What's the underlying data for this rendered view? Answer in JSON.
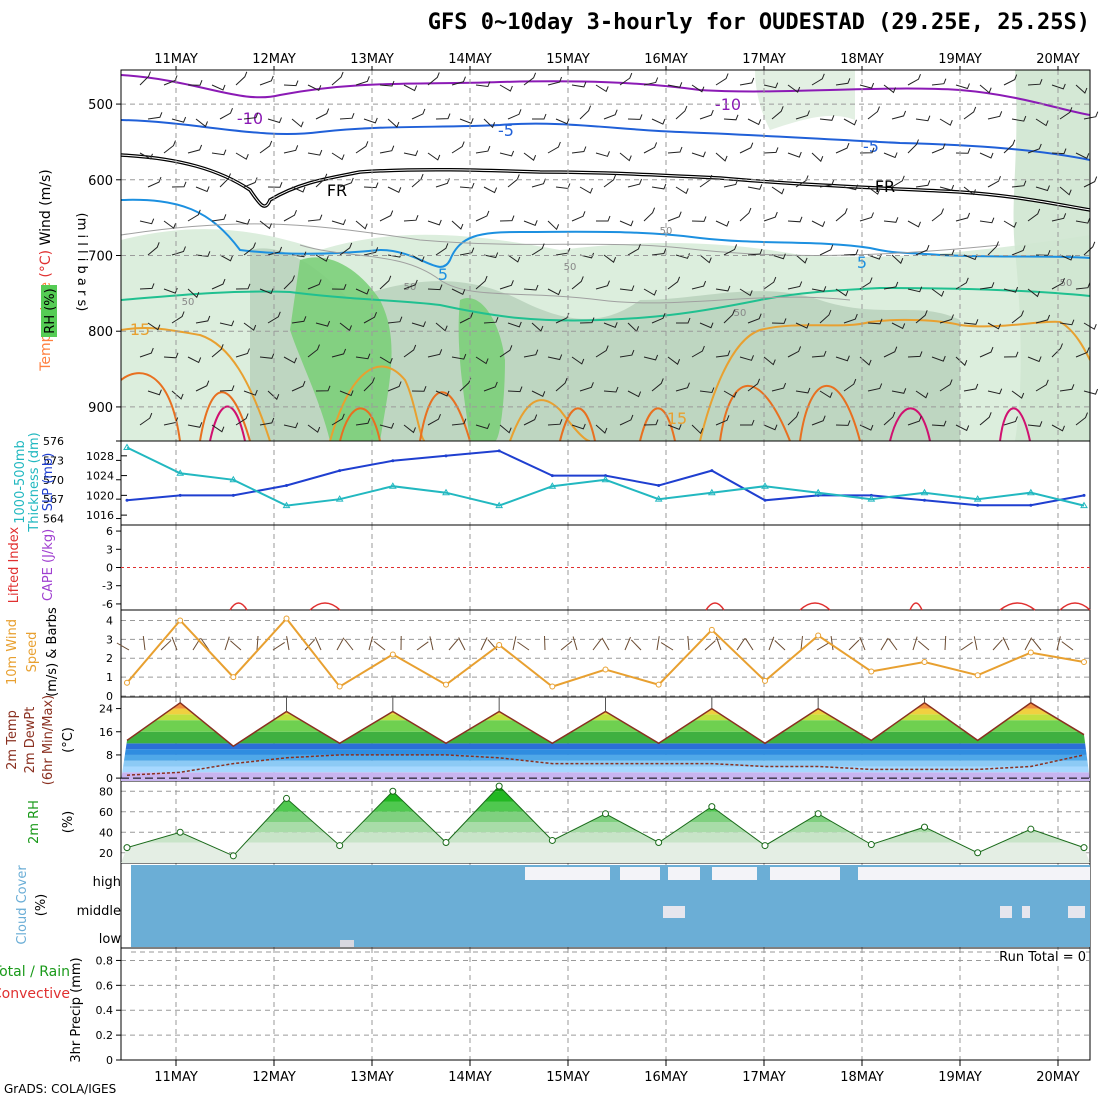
{
  "title": "GFS 0~10day 3-hourly for OUDESTAD (29.25E, 25.25S)",
  "credit": "GrADS: COLA/IGES",
  "run_total": "Run Total = 0",
  "date_labels": [
    "11MAY",
    "12MAY",
    "13MAY",
    "14MAY",
    "15MAY",
    "16MAY",
    "17MAY",
    "18MAY",
    "19MAY",
    "20MAY"
  ],
  "panels": {
    "upper": {
      "ylabel_parts": [
        "Temperature",
        "(°C)",
        "Wind",
        "(m/s)"
      ],
      "ylabel_units": "(m i l l i b a r s)",
      "rh_label": "RH (%)",
      "ticks": [
        "500",
        "600",
        "700",
        "800",
        "900"
      ],
      "isotherms": [
        "-10",
        "-10",
        "-5",
        "-5",
        "FR",
        "FR",
        "5",
        "5",
        "15",
        "15"
      ],
      "rh_contours": [
        "50",
        "50",
        "50",
        "50",
        "50",
        "50"
      ]
    },
    "pressure": {
      "left_label_1": "1000-500mb",
      "left_label_2": "Thickness (dm)",
      "right_label": "SLP (mb)",
      "left_ticks": [
        "576",
        "573",
        "570",
        "567",
        "564"
      ],
      "right_ticks": [
        "1028",
        "1024",
        "1020",
        "1016"
      ]
    },
    "stability": {
      "label_1": "Lifted Index",
      "label_2": "CAPE (J/kg)",
      "ticks": [
        "6",
        "3",
        "0",
        "-3",
        "-6"
      ]
    },
    "wind10m": {
      "label_1": "10m Wind",
      "label_2": "Speed",
      "label_3": "(m/s) & Barbs",
      "ticks": [
        "4",
        "3",
        "2",
        "1",
        "0"
      ]
    },
    "temp2m": {
      "label_1": "2m Temp",
      "label_2": "2m DewPt",
      "label_3": "(6hr Min/Max)",
      "label_4": "(°C)",
      "ticks": [
        "24",
        "16",
        "8",
        "0"
      ]
    },
    "rh2m": {
      "label_1": "2m RH",
      "label_2": "(%)",
      "ticks": [
        "80",
        "60",
        "40",
        "20"
      ]
    },
    "cloud": {
      "label_1": "Cloud Cover",
      "label_2": "(%)",
      "rows": [
        "high",
        "middle",
        "low"
      ]
    },
    "precip": {
      "label_1": "Total / Rain",
      "label_2": "Convective",
      "label_3": "3hr Precip (mm)",
      "ticks": [
        "0.8",
        "0.6",
        "0.4",
        "0.2",
        "0"
      ]
    }
  },
  "colors": {
    "slp": "#1f3fd0",
    "thickness": "#22b8c0",
    "wind_speed": "#e8a030",
    "lifted_index": "#e03030",
    "cape": "#a040d0",
    "rh_green": "#55cc55",
    "cloud_blue": "#6baed6",
    "temp_label": "#ff8040"
  },
  "chart_data": [
    {
      "type": "line",
      "title": "1000-500mb Thickness (dm) / SLP (mb)",
      "x": [
        "11MAY 00",
        "11MAY 12",
        "12MAY 00",
        "12MAY 12",
        "13MAY 00",
        "13MAY 12",
        "14MAY 00",
        "14MAY 12",
        "15MAY 00",
        "15MAY 12",
        "16MAY 00",
        "16MAY 12",
        "17MAY 00",
        "17MAY 12",
        "18MAY 00",
        "18MAY 12",
        "19MAY 00",
        "19MAY 12",
        "20MAY 00"
      ],
      "series": [
        {
          "name": "SLP (mb)",
          "values": [
            1019,
            1020,
            1020,
            1022,
            1025,
            1027,
            1028,
            1029,
            1024,
            1024,
            1022,
            1025,
            1019,
            1020,
            1020,
            1019,
            1018,
            1018,
            1020
          ]
        },
        {
          "name": "1000-500mb Thickness (dm)",
          "values": [
            575,
            571,
            570,
            566,
            567,
            569,
            568,
            566,
            569,
            570,
            567,
            568,
            569,
            568,
            567,
            568,
            567,
            568,
            566
          ]
        }
      ],
      "ylim_left": [
        563,
        576
      ],
      "ylim_right": [
        1014,
        1031
      ]
    },
    {
      "type": "line",
      "title": "10m Wind Speed (m/s)",
      "x": [
        "11MAY 00",
        "11MAY 12",
        "12MAY 00",
        "12MAY 12",
        "13MAY 00",
        "13MAY 12",
        "14MAY 00",
        "14MAY 12",
        "15MAY 00",
        "15MAY 12",
        "16MAY 00",
        "16MAY 12",
        "17MAY 00",
        "17MAY 12",
        "18MAY 00",
        "18MAY 12",
        "19MAY 00",
        "19MAY 12",
        "20MAY 00"
      ],
      "values": [
        0.7,
        4.0,
        1.0,
        4.1,
        0.5,
        2.2,
        0.6,
        2.7,
        0.5,
        1.4,
        0.6,
        3.5,
        0.8,
        3.2,
        1.3,
        1.8,
        1.1,
        2.3,
        1.8
      ],
      "ylim": [
        0,
        4.5
      ]
    },
    {
      "type": "area",
      "title": "2m Temp (°C)",
      "x": [
        "11MAY 00",
        "11MAY 12",
        "12MAY 00",
        "12MAY 12",
        "13MAY 00",
        "13MAY 12",
        "14MAY 00",
        "14MAY 12",
        "15MAY 00",
        "15MAY 12",
        "16MAY 00",
        "16MAY 12",
        "17MAY 00",
        "17MAY 12",
        "18MAY 00",
        "18MAY 12",
        "19MAY 00",
        "19MAY 12",
        "20MAY 00"
      ],
      "series": [
        {
          "name": "2m Temp",
          "values": [
            13,
            26,
            11,
            23,
            12,
            23,
            12,
            23,
            12,
            23,
            12,
            24,
            12,
            24,
            13,
            26,
            13,
            26,
            15
          ]
        },
        {
          "name": "2m DewPt",
          "values": [
            1,
            2,
            5,
            7,
            8,
            8,
            8,
            7,
            5,
            5,
            5,
            5,
            4,
            4,
            3,
            3,
            3,
            4,
            8
          ]
        }
      ],
      "ylim": [
        -1,
        28
      ]
    },
    {
      "type": "area",
      "title": "2m RH (%)",
      "x": [
        "11MAY 00",
        "11MAY 12",
        "12MAY 00",
        "12MAY 12",
        "13MAY 00",
        "13MAY 12",
        "14MAY 00",
        "14MAY 12",
        "15MAY 00",
        "15MAY 12",
        "16MAY 00",
        "16MAY 12",
        "17MAY 00",
        "17MAY 12",
        "18MAY 00",
        "18MAY 12",
        "19MAY 00",
        "19MAY 12",
        "20MAY 00"
      ],
      "values": [
        25,
        40,
        17,
        73,
        27,
        80,
        30,
        85,
        32,
        58,
        30,
        65,
        27,
        58,
        28,
        45,
        20,
        43,
        25
      ],
      "ylim": [
        10,
        90
      ]
    },
    {
      "type": "bar",
      "title": "3hr Precip (mm)",
      "categories": [
        "11MAY",
        "12MAY",
        "13MAY",
        "14MAY",
        "15MAY",
        "16MAY",
        "17MAY",
        "18MAY",
        "19MAY",
        "20MAY"
      ],
      "values": [
        0,
        0,
        0,
        0,
        0,
        0,
        0,
        0,
        0,
        0
      ],
      "ylim": [
        0,
        0.9
      ]
    }
  ]
}
